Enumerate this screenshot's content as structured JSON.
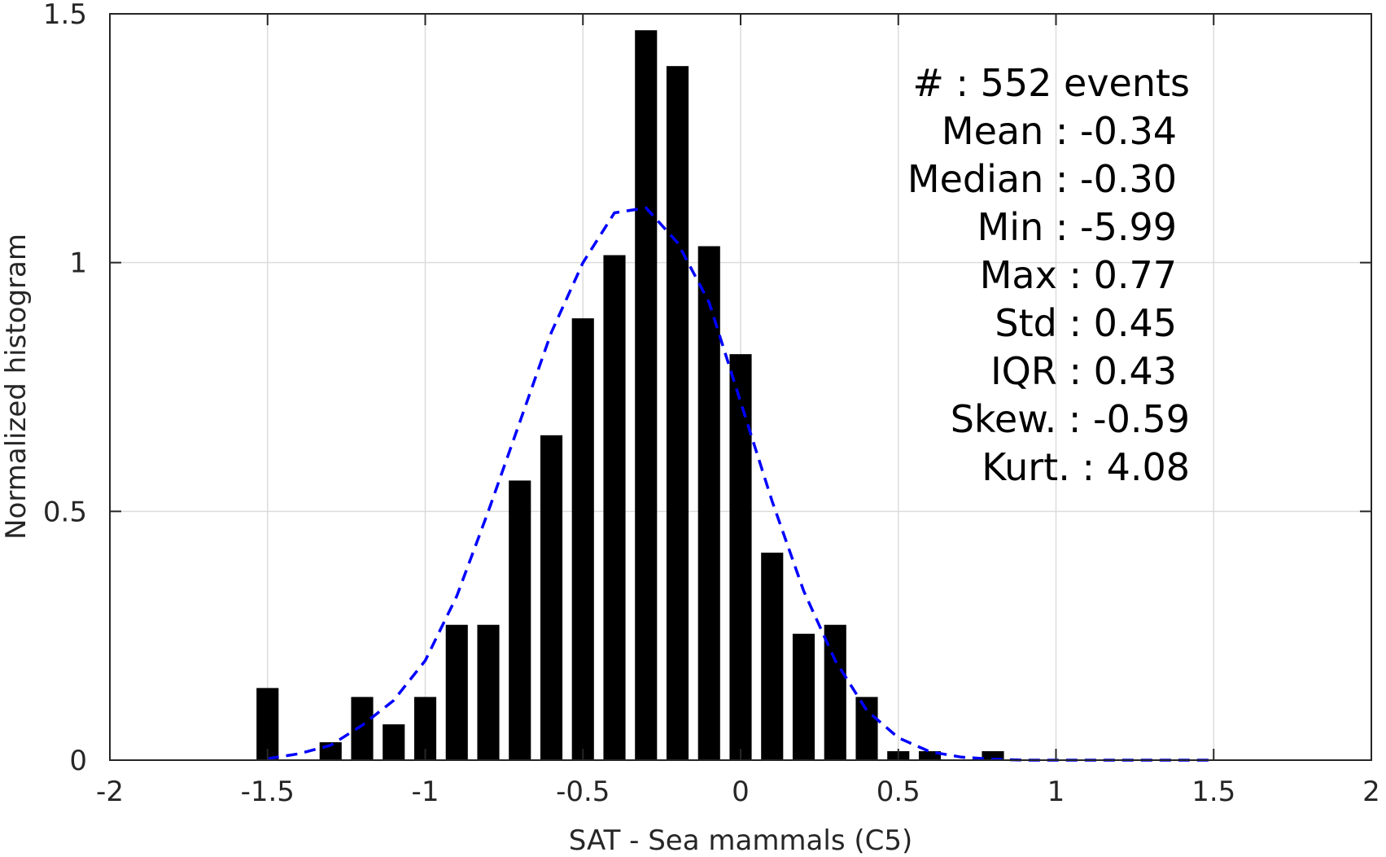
{
  "chart_data": {
    "type": "bar",
    "xlabel": "SAT - Sea mammals (C5)",
    "ylabel": "Normalized histogram",
    "xlim": [
      -2,
      2
    ],
    "ylim": [
      0,
      1.5
    ],
    "grid": true,
    "x_ticks": [
      {
        "value": -2,
        "label": "-2"
      },
      {
        "value": -1.5,
        "label": "-1.5"
      },
      {
        "value": -1,
        "label": "-1"
      },
      {
        "value": -0.5,
        "label": "-0.5"
      },
      {
        "value": 0,
        "label": "0"
      },
      {
        "value": 0.5,
        "label": "0.5"
      },
      {
        "value": 1,
        "label": "1"
      },
      {
        "value": 1.5,
        "label": "1.5"
      },
      {
        "value": 2,
        "label": "2"
      }
    ],
    "y_ticks": [
      {
        "value": 0,
        "label": "0"
      },
      {
        "value": 0.5,
        "label": "0.5"
      },
      {
        "value": 1,
        "label": "1"
      },
      {
        "value": 1.5,
        "label": "1.5"
      }
    ],
    "bar_width": 0.07,
    "bars": {
      "x": [
        -1.5,
        -1.3,
        -1.2,
        -1.1,
        -1.0,
        -0.9,
        -0.8,
        -0.7,
        -0.6,
        -0.5,
        -0.4,
        -0.3,
        -0.2,
        -0.1,
        0.0,
        0.1,
        0.2,
        0.3,
        0.4,
        0.5,
        0.6,
        0.8
      ],
      "values": [
        0.145,
        0.036,
        0.127,
        0.072,
        0.127,
        0.272,
        0.272,
        0.562,
        0.653,
        0.888,
        1.015,
        1.467,
        1.395,
        1.033,
        0.816,
        0.417,
        0.254,
        0.272,
        0.127,
        0.018,
        0.018,
        0.018
      ],
      "color": "#000000"
    },
    "series": [
      {
        "type": "line",
        "style": "dashed",
        "color": "#0000ff",
        "x": [
          -1.5,
          -1.4,
          -1.3,
          -1.2,
          -1.1,
          -1.0,
          -0.9,
          -0.8,
          -0.7,
          -0.6,
          -0.5,
          -0.4,
          -0.3,
          -0.2,
          -0.1,
          0.0,
          0.1,
          0.2,
          0.3,
          0.4,
          0.5,
          0.6,
          0.7,
          0.8,
          0.9,
          1.0,
          1.1,
          1.2,
          1.3,
          1.4,
          1.5
        ],
        "values": [
          0.003,
          0.013,
          0.03,
          0.07,
          0.12,
          0.2,
          0.33,
          0.5,
          0.68,
          0.86,
          1.0,
          1.1,
          1.11,
          1.04,
          0.92,
          0.72,
          0.52,
          0.34,
          0.2,
          0.1,
          0.045,
          0.017,
          0.006,
          0.002,
          0.0,
          0.0,
          0.0,
          0.0,
          0.0,
          0.0,
          0.0
        ]
      }
    ],
    "annotations": [
      "#  : 552 events",
      "Mean : -0.34",
      "Median : -0.30",
      "Min : -5.99",
      "Max : 0.77",
      "Std : 0.45",
      "IQR : 0.43",
      "Skew. : -0.59",
      "Kurt. : 4.08"
    ]
  }
}
